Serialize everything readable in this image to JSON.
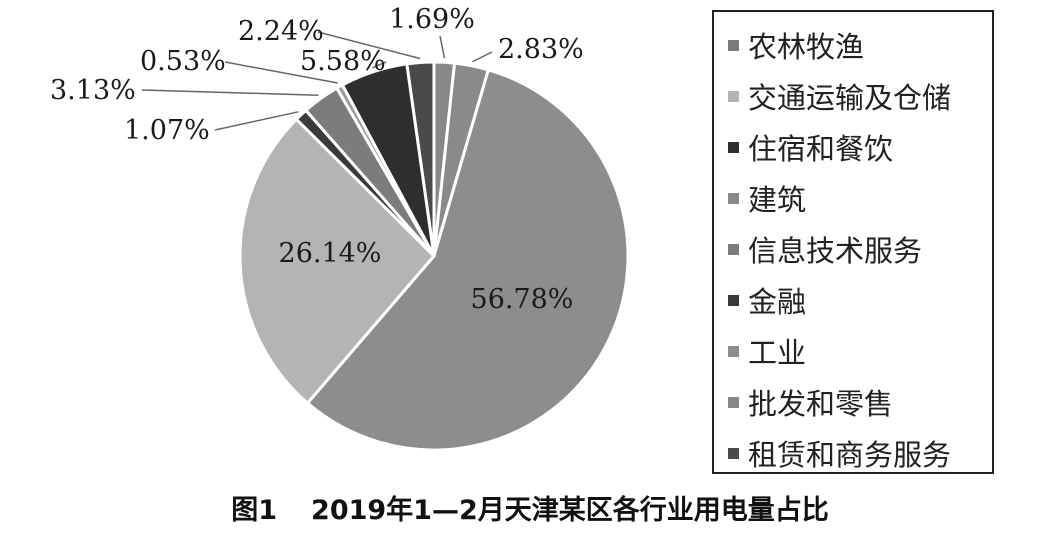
{
  "chart_data": {
    "type": "pie",
    "title": "图1 2019年1—2月天津某区各行业用电量占比",
    "slices": [
      {
        "label": "农林牧渔",
        "value": 1.69,
        "value_label": "1.69%",
        "color": "#888888"
      },
      {
        "label": "交通运输及仓储",
        "value": 2.83,
        "value_label": "2.83%",
        "color": "#8a8a8a"
      },
      {
        "label": "住宿和餐饮",
        "value": 56.78,
        "value_label": "56.78%",
        "color": "#8d8d8d"
      },
      {
        "label": "建筑",
        "value": 26.14,
        "value_label": "26.14%",
        "color": "#b4b4b4"
      },
      {
        "label": "信息技术服务",
        "value": 1.07,
        "value_label": "1.07%",
        "color": "#3a3a3a"
      },
      {
        "label": "金融",
        "value": 3.13,
        "value_label": "3.13%",
        "color": "#7c7c7c"
      },
      {
        "label": "工业",
        "value": 0.53,
        "value_label": "0.53%",
        "color": "#9a9a9a"
      },
      {
        "label": "批发和零售",
        "value": 5.58,
        "value_label": "5.58%",
        "color": "#2e2e2e"
      },
      {
        "label": "租赁和商务服务",
        "value": 2.24,
        "value_label": "2.24%",
        "color": "#4a4a4a"
      }
    ],
    "legend_position": "right"
  },
  "legend": {
    "items": [
      {
        "label": "农林牧渔",
        "color": "#7a7a7a"
      },
      {
        "label": "交通运输及仓储",
        "color": "#b4b4b4"
      },
      {
        "label": "住宿和餐饮",
        "color": "#2e2e2e"
      },
      {
        "label": "建筑",
        "color": "#8a8a8a"
      },
      {
        "label": "信息技术服务",
        "color": "#7c7c7c"
      },
      {
        "label": "金融",
        "color": "#3a3a3a"
      },
      {
        "label": "工业",
        "color": "#8d8d8d"
      },
      {
        "label": "批发和零售",
        "color": "#888888"
      },
      {
        "label": "租赁和商务服务",
        "color": "#4a4a4a"
      }
    ]
  },
  "caption": {
    "number": "图1",
    "text": "2019年1—2月天津某区各行业用电量占比"
  }
}
